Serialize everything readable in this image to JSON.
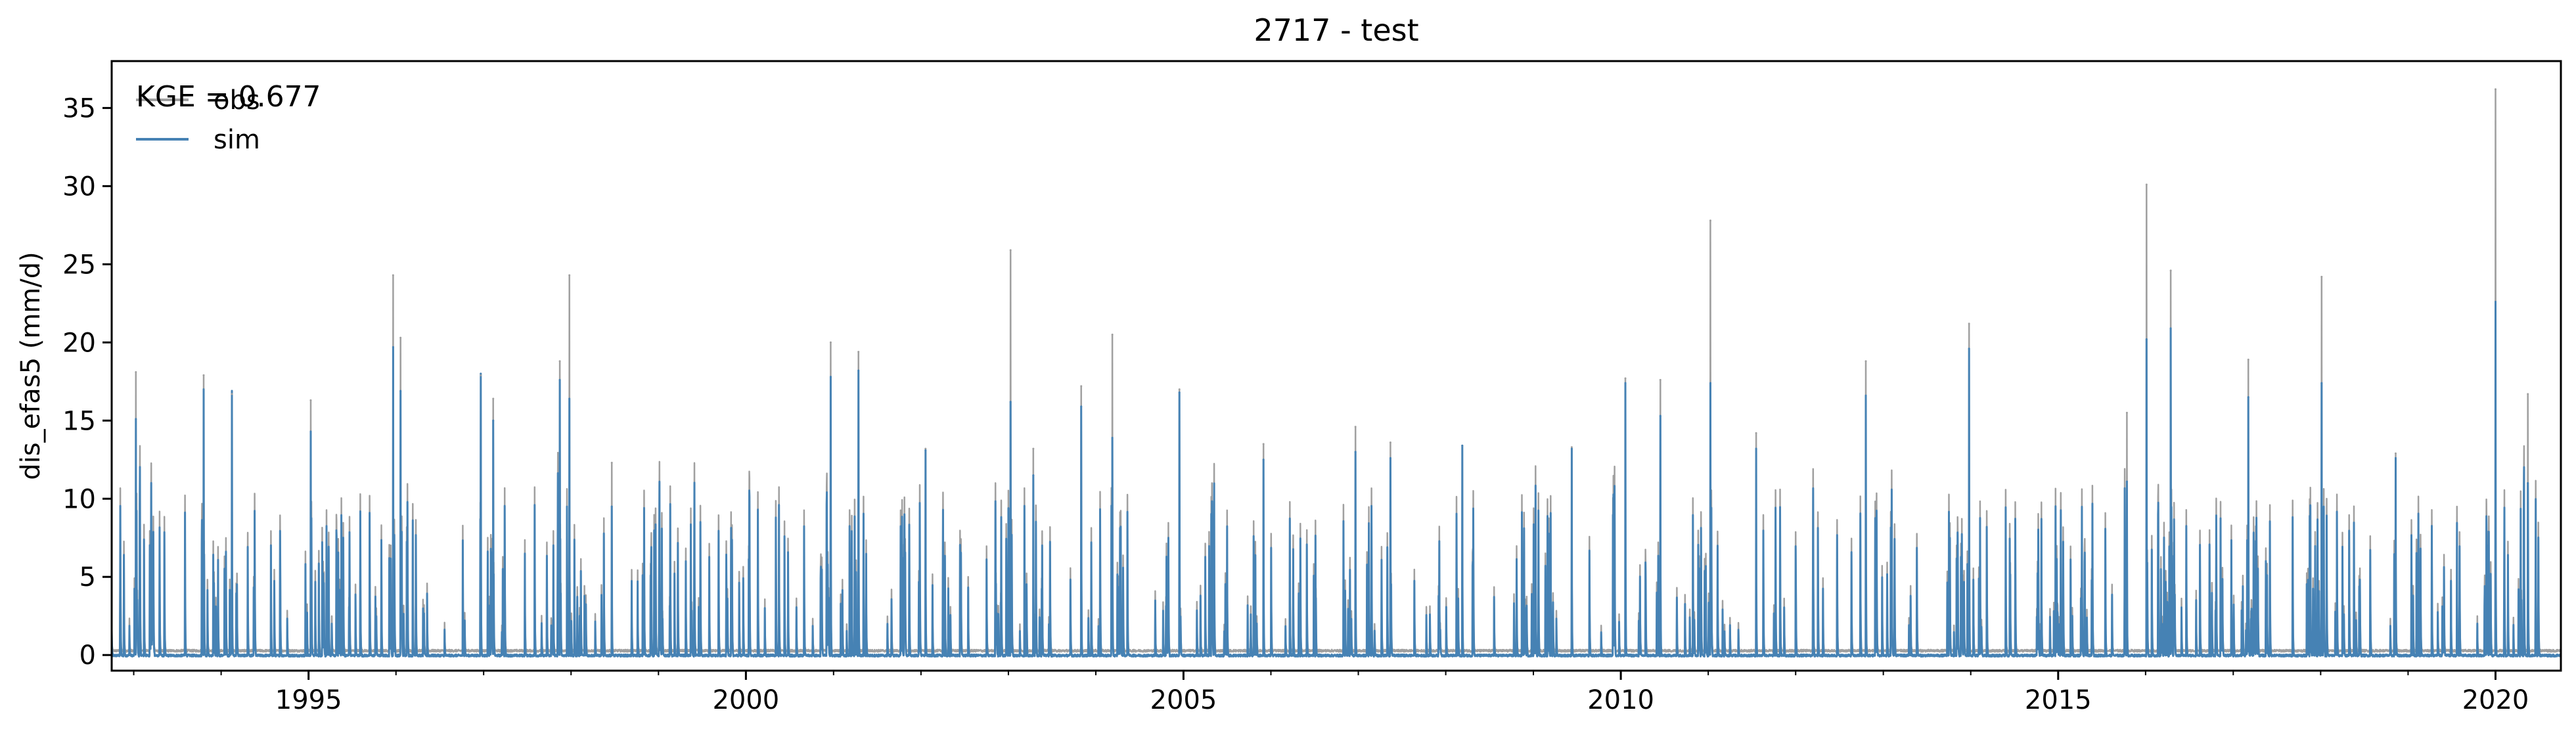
{
  "chart_data": {
    "type": "line",
    "title": "2717 - test",
    "xlabel": "",
    "ylabel": "dis_efas5 (mm/d)",
    "xlim": [
      "1992-10-01",
      "2020-09-30"
    ],
    "ylim": [
      -1,
      38
    ],
    "x_ticks": [
      {
        "date": "1995-01-01",
        "label": "1995"
      },
      {
        "date": "2000-01-01",
        "label": "2000"
      },
      {
        "date": "2005-01-01",
        "label": "2005"
      },
      {
        "date": "2010-01-01",
        "label": "2010"
      },
      {
        "date": "2015-01-01",
        "label": "2015"
      },
      {
        "date": "2020-01-01",
        "label": "2020"
      }
    ],
    "y_ticks": [
      0,
      5,
      10,
      15,
      20,
      25,
      30,
      35
    ],
    "grid": false,
    "legend_position": "top-left",
    "annotation": "KGE = 0.677",
    "series": [
      {
        "name": "obs",
        "color": "#a0a0a0",
        "peaks": [
          {
            "date": "1993-01-10",
            "value": 18.1
          },
          {
            "date": "1993-10-20",
            "value": 17.9
          },
          {
            "date": "1994-02-15",
            "value": 16.7
          },
          {
            "date": "1995-01-10",
            "value": 16.3
          },
          {
            "date": "1995-12-20",
            "value": 24.3
          },
          {
            "date": "1996-01-20",
            "value": 20.3
          },
          {
            "date": "1996-12-20",
            "value": 17.9
          },
          {
            "date": "1997-02-10",
            "value": 16.4
          },
          {
            "date": "1997-11-15",
            "value": 18.8
          },
          {
            "date": "1997-12-25",
            "value": 24.3
          },
          {
            "date": "1998-06-20",
            "value": 12.3
          },
          {
            "date": "2000-12-20",
            "value": 20.0
          },
          {
            "date": "2001-04-15",
            "value": 19.4
          },
          {
            "date": "2002-01-20",
            "value": 13.2
          },
          {
            "date": "2003-01-10",
            "value": 25.9
          },
          {
            "date": "2003-04-15",
            "value": 13.2
          },
          {
            "date": "2003-11-01",
            "value": 17.2
          },
          {
            "date": "2004-03-10",
            "value": 20.5
          },
          {
            "date": "2004-12-15",
            "value": 17.0
          },
          {
            "date": "2005-12-01",
            "value": 13.5
          },
          {
            "date": "2006-12-20",
            "value": 14.6
          },
          {
            "date": "2007-05-15",
            "value": 13.6
          },
          {
            "date": "2008-03-10",
            "value": 13.4
          },
          {
            "date": "2009-06-10",
            "value": 13.3
          },
          {
            "date": "2010-01-20",
            "value": 17.7
          },
          {
            "date": "2010-06-15",
            "value": 17.6
          },
          {
            "date": "2011-01-10",
            "value": 27.8
          },
          {
            "date": "2011-07-20",
            "value": 14.2
          },
          {
            "date": "2012-10-20",
            "value": 18.8
          },
          {
            "date": "2013-12-25",
            "value": 21.2
          },
          {
            "date": "2015-10-15",
            "value": 15.5
          },
          {
            "date": "2016-01-05",
            "value": 30.1
          },
          {
            "date": "2016-04-15",
            "value": 24.6
          },
          {
            "date": "2017-03-05",
            "value": 18.9
          },
          {
            "date": "2018-01-05",
            "value": 24.2
          },
          {
            "date": "2018-11-10",
            "value": 12.9
          },
          {
            "date": "2020-01-01",
            "value": 36.2
          },
          {
            "date": "2020-05-15",
            "value": 16.7
          }
        ]
      },
      {
        "name": "sim",
        "color": "#4682b4",
        "peaks": [
          {
            "date": "1993-01-10",
            "value": 15.1
          },
          {
            "date": "1993-10-20",
            "value": 17.0
          },
          {
            "date": "1994-02-15",
            "value": 16.9
          },
          {
            "date": "1995-01-10",
            "value": 14.3
          },
          {
            "date": "1995-12-20",
            "value": 19.7
          },
          {
            "date": "1996-01-20",
            "value": 16.9
          },
          {
            "date": "1996-12-20",
            "value": 18.0
          },
          {
            "date": "1997-02-10",
            "value": 15.0
          },
          {
            "date": "1997-11-15",
            "value": 17.6
          },
          {
            "date": "1997-12-25",
            "value": 16.4
          },
          {
            "date": "1998-06-20",
            "value": 9.5
          },
          {
            "date": "2000-12-20",
            "value": 17.8
          },
          {
            "date": "2001-04-15",
            "value": 18.2
          },
          {
            "date": "2002-01-20",
            "value": 13.1
          },
          {
            "date": "2003-01-10",
            "value": 16.2
          },
          {
            "date": "2003-04-15",
            "value": 11.5
          },
          {
            "date": "2003-11-01",
            "value": 15.9
          },
          {
            "date": "2004-03-10",
            "value": 13.9
          },
          {
            "date": "2004-12-15",
            "value": 16.8
          },
          {
            "date": "2005-12-01",
            "value": 12.5
          },
          {
            "date": "2006-12-20",
            "value": 13.0
          },
          {
            "date": "2007-05-15",
            "value": 12.6
          },
          {
            "date": "2008-03-10",
            "value": 13.4
          },
          {
            "date": "2009-06-10",
            "value": 13.2
          },
          {
            "date": "2010-01-20",
            "value": 17.4
          },
          {
            "date": "2010-06-15",
            "value": 15.3
          },
          {
            "date": "2011-01-10",
            "value": 17.4
          },
          {
            "date": "2011-07-20",
            "value": 13.2
          },
          {
            "date": "2012-10-20",
            "value": 16.6
          },
          {
            "date": "2013-12-25",
            "value": 19.6
          },
          {
            "date": "2015-10-15",
            "value": 11.1
          },
          {
            "date": "2016-01-05",
            "value": 20.2
          },
          {
            "date": "2016-04-15",
            "value": 20.9
          },
          {
            "date": "2017-03-05",
            "value": 16.5
          },
          {
            "date": "2018-01-05",
            "value": 17.4
          },
          {
            "date": "2018-11-10",
            "value": 12.6
          },
          {
            "date": "2020-01-01",
            "value": 22.6
          },
          {
            "date": "2020-05-15",
            "value": 11.0
          }
        ]
      }
    ]
  }
}
